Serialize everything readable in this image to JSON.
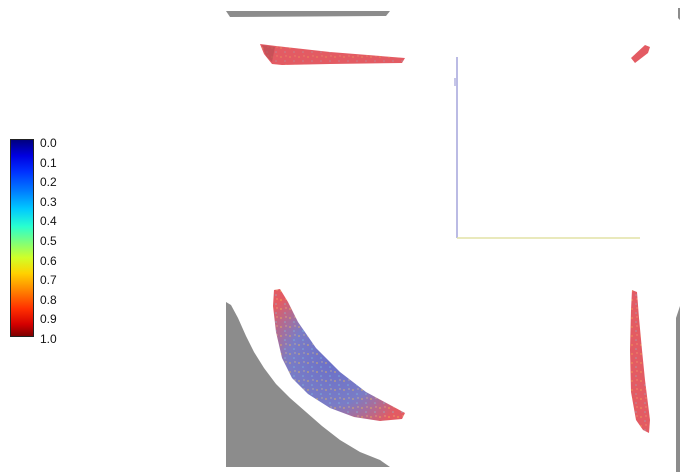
{
  "colorbar": {
    "ticks": [
      "0.0",
      "0.1",
      "0.2",
      "0.3",
      "0.4",
      "0.5",
      "0.6",
      "0.7",
      "0.8",
      "0.9",
      "1.0"
    ],
    "colormap": "jet",
    "range": [
      0.0,
      1.0
    ],
    "orientation": "vertical"
  },
  "colors": {
    "mesh_gray": "#8c8c8c",
    "surface_red": "#e8575f",
    "surface_blue": "#6b74c4",
    "outline_blue": "#9a9ad6",
    "outline_yellow": "#e6e6a8"
  }
}
